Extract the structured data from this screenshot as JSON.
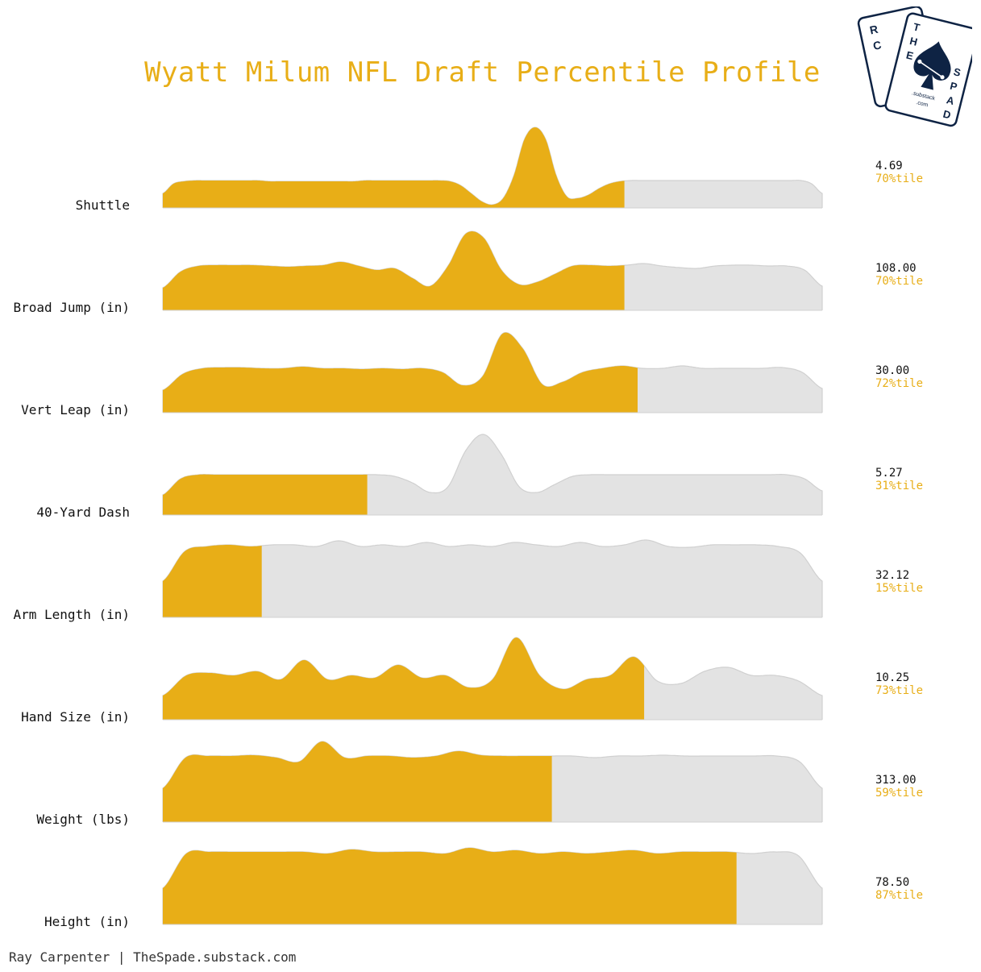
{
  "title": "Wyatt Milum NFL Draft Percentile Profile",
  "credit": "Ray Carpenter | TheSpade.substack.com",
  "colors": {
    "highlight": "#E8AE17",
    "background_fill": "#E3E3E3",
    "background_stroke": "#D0D0D0",
    "text": "#111111",
    "logo_navy": "#0E2344"
  },
  "logo": {
    "back_card_letters": "RC",
    "front_card_letters_top": "THE",
    "front_card_letters_side": "SPADE",
    "line1": ".substack",
    "line2": ".com"
  },
  "chart_data": {
    "type": "ridgeline",
    "x_range": [
      0,
      100
    ],
    "rows": [
      {
        "label": "Shuttle",
        "value": "4.69",
        "percentile_label": "70%tile",
        "percentile": 70,
        "density": [
          0.18,
          0.3,
          0.33,
          0.34,
          0.34,
          0.34,
          0.34,
          0.34,
          0.34,
          0.34,
          0.33,
          0.33,
          0.33,
          0.33,
          0.33,
          0.33,
          0.33,
          0.33,
          0.33,
          0.34,
          0.34,
          0.34,
          0.34,
          0.34,
          0.34,
          0.34,
          0.34,
          0.33,
          0.28,
          0.18,
          0.08,
          0.04,
          0.12,
          0.4,
          0.85,
          1.0,
          0.85,
          0.4,
          0.14,
          0.12,
          0.16,
          0.24,
          0.3,
          0.33,
          0.34,
          0.34,
          0.34,
          0.34,
          0.34,
          0.34,
          0.34,
          0.34,
          0.34,
          0.34,
          0.34,
          0.34,
          0.34,
          0.34,
          0.34,
          0.34,
          0.34,
          0.3,
          0.18
        ]
      },
      {
        "label": "Broad Jump (in)",
        "value": "108.00",
        "percentile_label": "70%tile",
        "percentile": 70,
        "density": [
          0.28,
          0.48,
          0.55,
          0.56,
          0.56,
          0.56,
          0.55,
          0.54,
          0.55,
          0.56,
          0.6,
          0.55,
          0.5,
          0.52,
          0.4,
          0.3,
          0.55,
          0.95,
          0.9,
          0.5,
          0.32,
          0.35,
          0.45,
          0.55,
          0.56,
          0.55,
          0.56,
          0.58,
          0.55,
          0.53,
          0.52,
          0.55,
          0.56,
          0.56,
          0.55,
          0.55,
          0.5,
          0.3
        ]
      },
      {
        "label": "Vert Leap (in)",
        "value": "30.00",
        "percentile_label": "72%tile",
        "percentile": 72,
        "density": [
          0.28,
          0.48,
          0.55,
          0.56,
          0.56,
          0.55,
          0.55,
          0.57,
          0.55,
          0.55,
          0.54,
          0.55,
          0.54,
          0.55,
          0.5,
          0.34,
          0.45,
          0.98,
          0.8,
          0.35,
          0.38,
          0.5,
          0.55,
          0.58,
          0.55,
          0.55,
          0.58,
          0.55,
          0.55,
          0.55,
          0.55,
          0.56,
          0.5,
          0.3
        ]
      },
      {
        "label": "40-Yard Dash",
        "value": "5.27",
        "percentile_label": "31%tile",
        "percentile": 31,
        "density": [
          0.25,
          0.45,
          0.5,
          0.5,
          0.5,
          0.5,
          0.5,
          0.5,
          0.5,
          0.5,
          0.5,
          0.5,
          0.5,
          0.48,
          0.4,
          0.28,
          0.35,
          0.8,
          1.0,
          0.75,
          0.35,
          0.28,
          0.38,
          0.48,
          0.5,
          0.5,
          0.5,
          0.5,
          0.5,
          0.5,
          0.5,
          0.5,
          0.5,
          0.5,
          0.5,
          0.5,
          0.45,
          0.3
        ]
      },
      {
        "label": "Arm Length (in)",
        "value": "32.12",
        "percentile_label": "15%tile",
        "percentile": 15,
        "density": [
          0.45,
          0.82,
          0.88,
          0.9,
          0.88,
          0.9,
          0.9,
          0.88,
          0.95,
          0.88,
          0.9,
          0.88,
          0.93,
          0.88,
          0.9,
          0.88,
          0.93,
          0.9,
          0.88,
          0.93,
          0.88,
          0.9,
          0.96,
          0.88,
          0.87,
          0.9,
          0.9,
          0.9,
          0.88,
          0.8,
          0.45
        ]
      },
      {
        "label": "Hand Size (in)",
        "value": "10.25",
        "percentile_label": "73%tile",
        "percentile": 73,
        "density": [
          0.3,
          0.55,
          0.58,
          0.55,
          0.6,
          0.5,
          0.74,
          0.5,
          0.55,
          0.52,
          0.68,
          0.52,
          0.55,
          0.4,
          0.5,
          1.02,
          0.55,
          0.38,
          0.5,
          0.55,
          0.78,
          0.48,
          0.45,
          0.6,
          0.65,
          0.55,
          0.55,
          0.48,
          0.3
        ]
      },
      {
        "label": "Weight (lbs)",
        "value": "313.00",
        "percentile_label": "59%tile",
        "percentile": 59,
        "density": [
          0.42,
          0.8,
          0.82,
          0.82,
          0.83,
          0.8,
          0.75,
          1.0,
          0.8,
          0.82,
          0.82,
          0.8,
          0.82,
          0.88,
          0.83,
          0.82,
          0.82,
          0.82,
          0.82,
          0.8,
          0.82,
          0.82,
          0.83,
          0.82,
          0.82,
          0.82,
          0.82,
          0.82,
          0.75,
          0.42
        ]
      },
      {
        "label": "Height (in)",
        "value": "78.50",
        "percentile_label": "87%tile",
        "percentile": 87,
        "density": [
          0.45,
          0.88,
          0.9,
          0.9,
          0.9,
          0.9,
          0.9,
          0.88,
          0.93,
          0.9,
          0.9,
          0.9,
          0.88,
          0.95,
          0.9,
          0.92,
          0.88,
          0.9,
          0.88,
          0.9,
          0.92,
          0.88,
          0.9,
          0.9,
          0.9,
          0.88,
          0.9,
          0.85,
          0.45
        ]
      }
    ]
  }
}
